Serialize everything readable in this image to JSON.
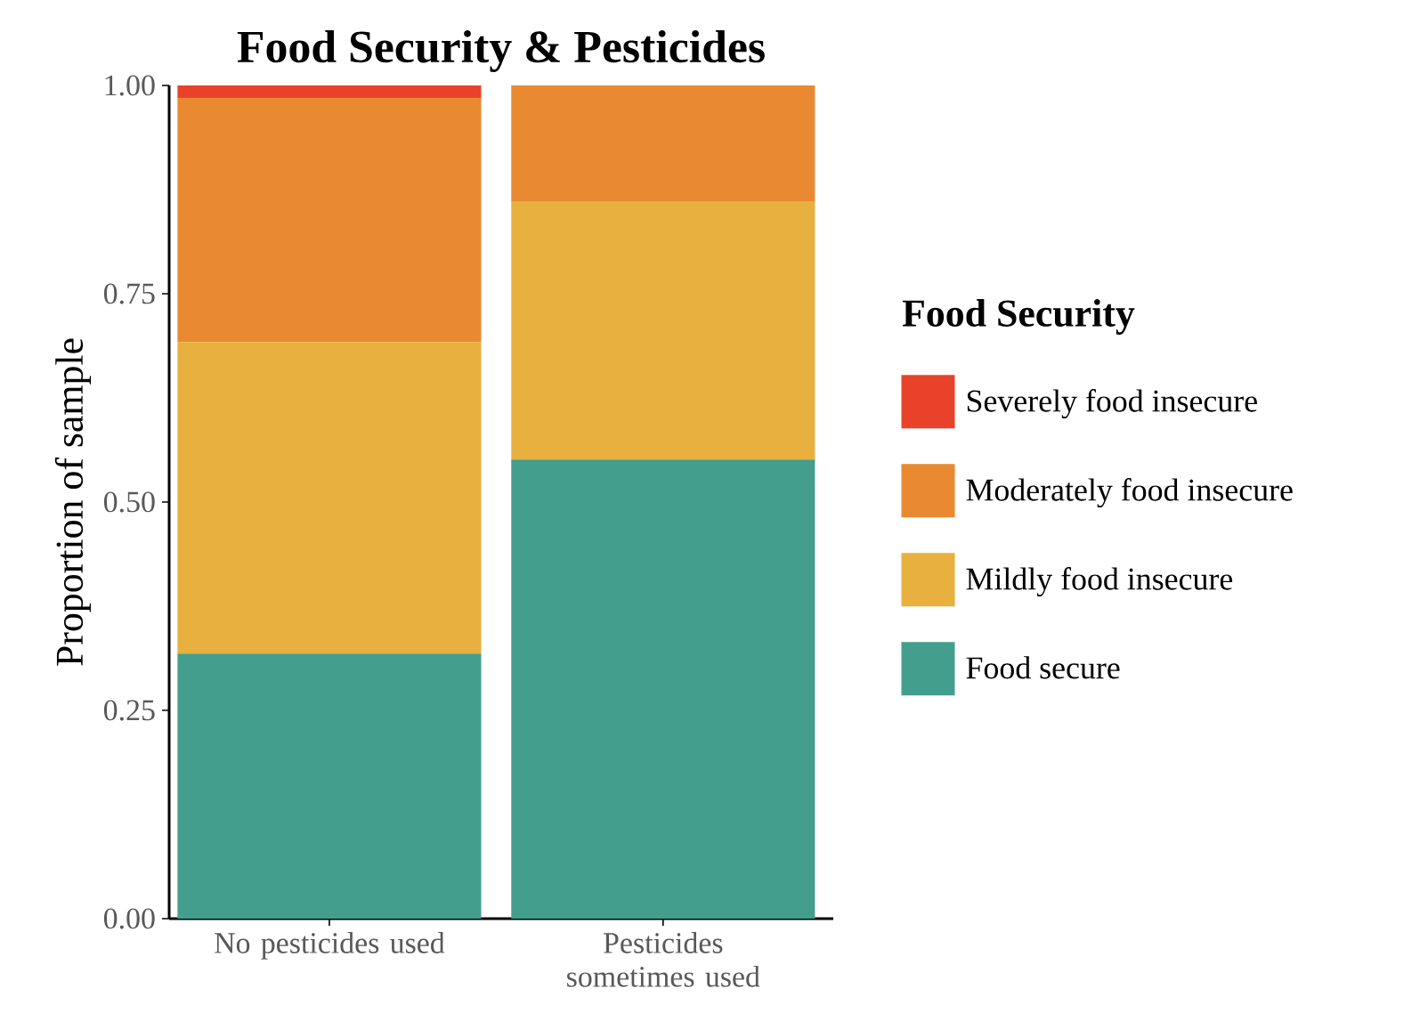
{
  "chart_data": {
    "type": "bar",
    "title": "Food Security & Pesticides",
    "ylabel": "Proportion of sample",
    "legend_title": "Food Security",
    "categories": [
      "No pesticides used",
      "Pesticides sometimes used"
    ],
    "stacked": true,
    "legend": "right",
    "ylim": [
      0,
      1
    ],
    "yticks": [
      {
        "value": 0,
        "label": "0.00"
      },
      {
        "value": 0.25,
        "label": "0.25"
      },
      {
        "value": 0.5,
        "label": "0.50"
      },
      {
        "value": 0.75,
        "label": "0.75"
      },
      {
        "value": 1,
        "label": "1.00"
      }
    ],
    "series": [
      {
        "name": "Food secure",
        "color": "#449e8e",
        "values": [
          0.318,
          0.551
        ]
      },
      {
        "name": "Mildly food insecure",
        "color": "#e8b03e",
        "values": [
          0.374,
          0.31
        ]
      },
      {
        "name": "Moderately food insecure",
        "color": "#e98a33",
        "values": [
          0.293,
          0.139
        ]
      },
      {
        "name": "Severely food insecure",
        "color": "#e8432a",
        "values": [
          0.015,
          0
        ]
      }
    ]
  }
}
